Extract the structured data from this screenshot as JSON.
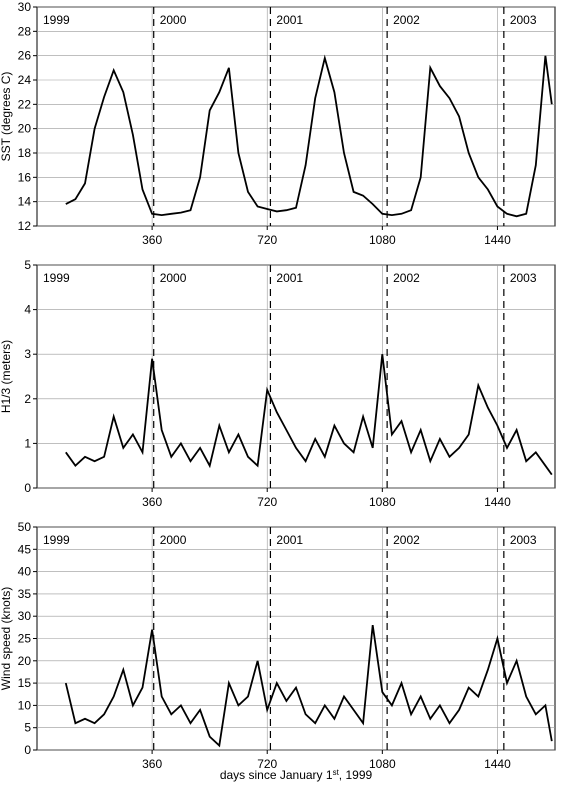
{
  "chart_data": [
    {
      "type": "line",
      "ylabel": "SST (degrees C)",
      "ylim": [
        12,
        30
      ],
      "yticks": [
        12,
        14,
        16,
        18,
        20,
        22,
        24,
        26,
        28,
        30
      ],
      "xlim": [
        0,
        1620
      ],
      "xticks": [
        360,
        720,
        1080,
        1440
      ],
      "grid": true,
      "year_starts": [
        0,
        365,
        730,
        1095,
        1460
      ],
      "year_labels": [
        "1999",
        "2000",
        "2001",
        "2002",
        "2003"
      ],
      "x": [
        90,
        120,
        150,
        180,
        210,
        240,
        270,
        300,
        330,
        360,
        390,
        420,
        450,
        480,
        510,
        540,
        570,
        600,
        630,
        660,
        690,
        720,
        750,
        780,
        810,
        840,
        870,
        900,
        930,
        960,
        990,
        1020,
        1050,
        1080,
        1110,
        1140,
        1170,
        1200,
        1230,
        1260,
        1290,
        1320,
        1350,
        1380,
        1410,
        1440,
        1470,
        1500,
        1530,
        1560,
        1590,
        1610
      ],
      "series": [
        {
          "color": "#000000",
          "values": [
            13.8,
            14.2,
            15.5,
            20,
            22.6,
            24.8,
            23,
            19.5,
            15,
            13,
            12.9,
            13,
            13.1,
            13.3,
            16,
            21.5,
            23,
            25,
            18,
            14.8,
            13.6,
            13.4,
            13.2,
            13.3,
            13.5,
            17,
            22.5,
            25.8,
            23,
            18,
            14.8,
            14.5,
            13.8,
            13,
            12.9,
            13,
            13.3,
            16,
            25,
            23.5,
            22.5,
            21,
            18,
            16,
            15,
            13.6,
            13,
            12.8,
            13,
            17,
            26,
            22
          ]
        }
      ]
    },
    {
      "type": "line",
      "ylabel": "H1/3 (meters)",
      "ylim": [
        0,
        5
      ],
      "yticks": [
        0,
        1,
        2,
        3,
        4,
        5
      ],
      "xlim": [
        0,
        1620
      ],
      "xticks": [
        360,
        720,
        1080,
        1440
      ],
      "grid": true,
      "year_starts": [
        0,
        365,
        730,
        1095,
        1460
      ],
      "year_labels": [
        "1999",
        "2000",
        "2001",
        "2002",
        "2003"
      ],
      "x": [
        90,
        120,
        150,
        180,
        210,
        240,
        270,
        300,
        330,
        360,
        390,
        420,
        450,
        480,
        510,
        540,
        570,
        600,
        630,
        660,
        690,
        720,
        750,
        780,
        810,
        840,
        870,
        900,
        930,
        960,
        990,
        1020,
        1050,
        1080,
        1110,
        1140,
        1170,
        1200,
        1230,
        1260,
        1290,
        1320,
        1350,
        1380,
        1410,
        1440,
        1470,
        1500,
        1530,
        1560,
        1590,
        1610
      ],
      "series": [
        {
          "color": "#000000",
          "values": [
            0.8,
            0.5,
            0.7,
            0.6,
            0.7,
            1.6,
            0.9,
            1.2,
            0.8,
            2.9,
            1.3,
            0.7,
            1.0,
            0.6,
            0.9,
            0.5,
            1.4,
            0.8,
            1.2,
            0.7,
            0.5,
            2.2,
            1.7,
            1.3,
            0.9,
            0.6,
            1.1,
            0.7,
            1.4,
            1.0,
            0.8,
            1.6,
            0.9,
            3.0,
            1.2,
            1.5,
            0.8,
            1.3,
            0.6,
            1.1,
            0.7,
            0.9,
            1.2,
            2.3,
            1.8,
            1.4,
            0.9,
            1.3,
            0.6,
            0.8,
            0.5,
            0.3
          ]
        }
      ]
    },
    {
      "type": "line",
      "ylabel": "Wind speed (knots)",
      "ylim": [
        0,
        50
      ],
      "yticks": [
        0,
        5,
        10,
        15,
        20,
        25,
        30,
        35,
        40,
        45,
        50
      ],
      "xlim": [
        0,
        1620
      ],
      "xticks": [
        360,
        720,
        1080,
        1440
      ],
      "grid": true,
      "xlabel_parts": [
        "days since January 1",
        "st",
        ", 1999"
      ],
      "year_starts": [
        0,
        365,
        730,
        1095,
        1460
      ],
      "year_labels": [
        "1999",
        "2000",
        "2001",
        "2002",
        "2003"
      ],
      "x": [
        90,
        120,
        150,
        180,
        210,
        240,
        270,
        300,
        330,
        360,
        390,
        420,
        450,
        480,
        510,
        540,
        570,
        600,
        630,
        660,
        690,
        720,
        750,
        780,
        810,
        840,
        870,
        900,
        930,
        960,
        990,
        1020,
        1050,
        1080,
        1110,
        1140,
        1170,
        1200,
        1230,
        1260,
        1290,
        1320,
        1350,
        1380,
        1410,
        1440,
        1470,
        1500,
        1530,
        1560,
        1590,
        1610
      ],
      "series": [
        {
          "color": "#000000",
          "values": [
            15,
            6,
            7,
            6,
            8,
            12,
            18,
            10,
            14,
            27,
            12,
            8,
            10,
            6,
            9,
            3,
            1,
            15,
            10,
            12,
            20,
            9,
            15,
            11,
            14,
            8,
            6,
            10,
            7,
            12,
            9,
            6,
            28,
            13,
            10,
            15,
            8,
            12,
            7,
            10,
            6,
            9,
            14,
            12,
            18,
            25,
            15,
            20,
            12,
            8,
            10,
            2
          ]
        }
      ]
    }
  ]
}
